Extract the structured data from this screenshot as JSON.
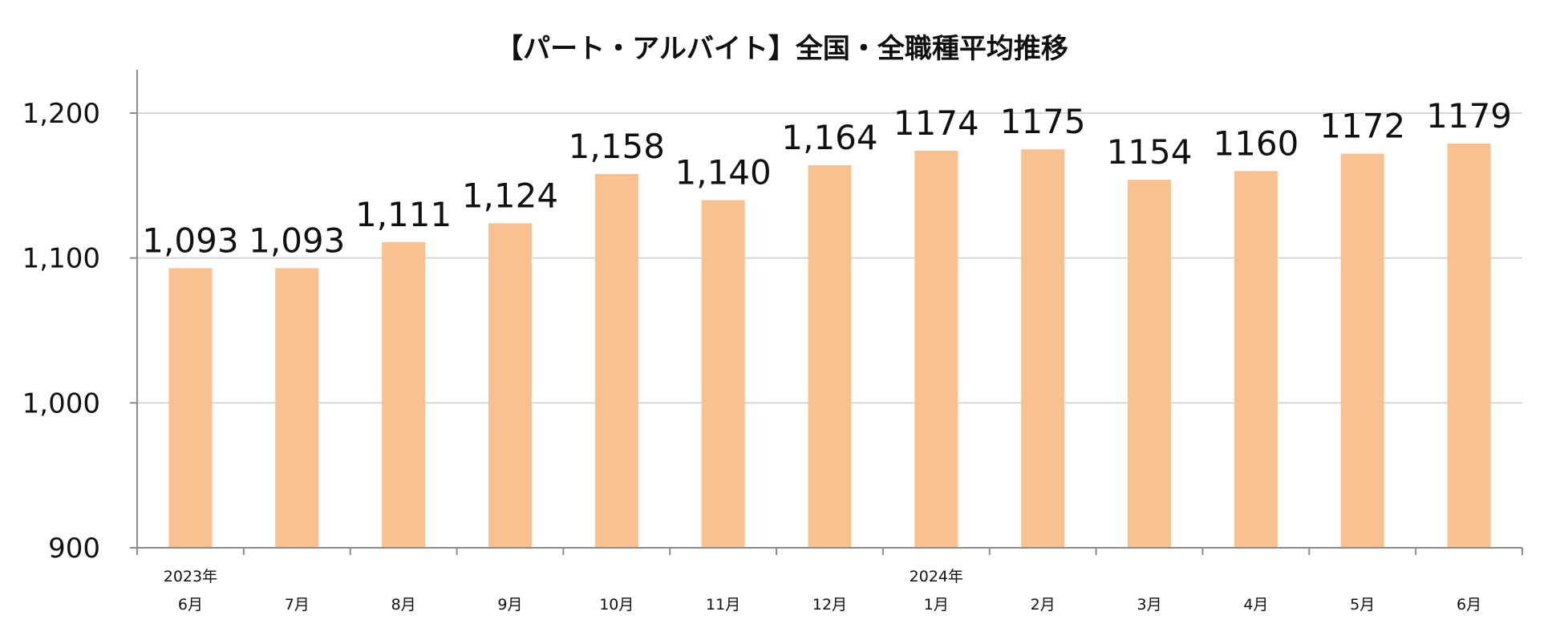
{
  "chart_data": {
    "type": "bar",
    "title": "【パート・アルバイト】全国・全職種平均推移",
    "categories": [
      "6月",
      "7月",
      "8月",
      "9月",
      "10月",
      "11月",
      "12月",
      "1月",
      "2月",
      "3月",
      "4月",
      "5月",
      "6月"
    ],
    "year_labels": [
      {
        "index": 0,
        "label": "2023年"
      },
      {
        "index": 7,
        "label": "2024年"
      }
    ],
    "values": [
      1093,
      1093,
      1111,
      1124,
      1158,
      1140,
      1164,
      1174,
      1175,
      1154,
      1160,
      1172,
      1179
    ],
    "data_labels": [
      "1,093",
      "1,093",
      "1,111",
      "1,124",
      "1,158",
      "1,140",
      "1,164",
      "1174",
      "1175",
      "1154",
      "1160",
      "1172",
      "1179"
    ],
    "ylim": [
      900,
      1230
    ],
    "yticks": [
      {
        "value": 900,
        "label": "900"
      },
      {
        "value": 1000,
        "label": "1,000"
      },
      {
        "value": 1100,
        "label": "1,100"
      },
      {
        "value": 1200,
        "label": "1,200"
      }
    ],
    "xlabel": "",
    "ylabel": "",
    "bar_color": "#F9C090",
    "grid": true,
    "legend": "none"
  }
}
